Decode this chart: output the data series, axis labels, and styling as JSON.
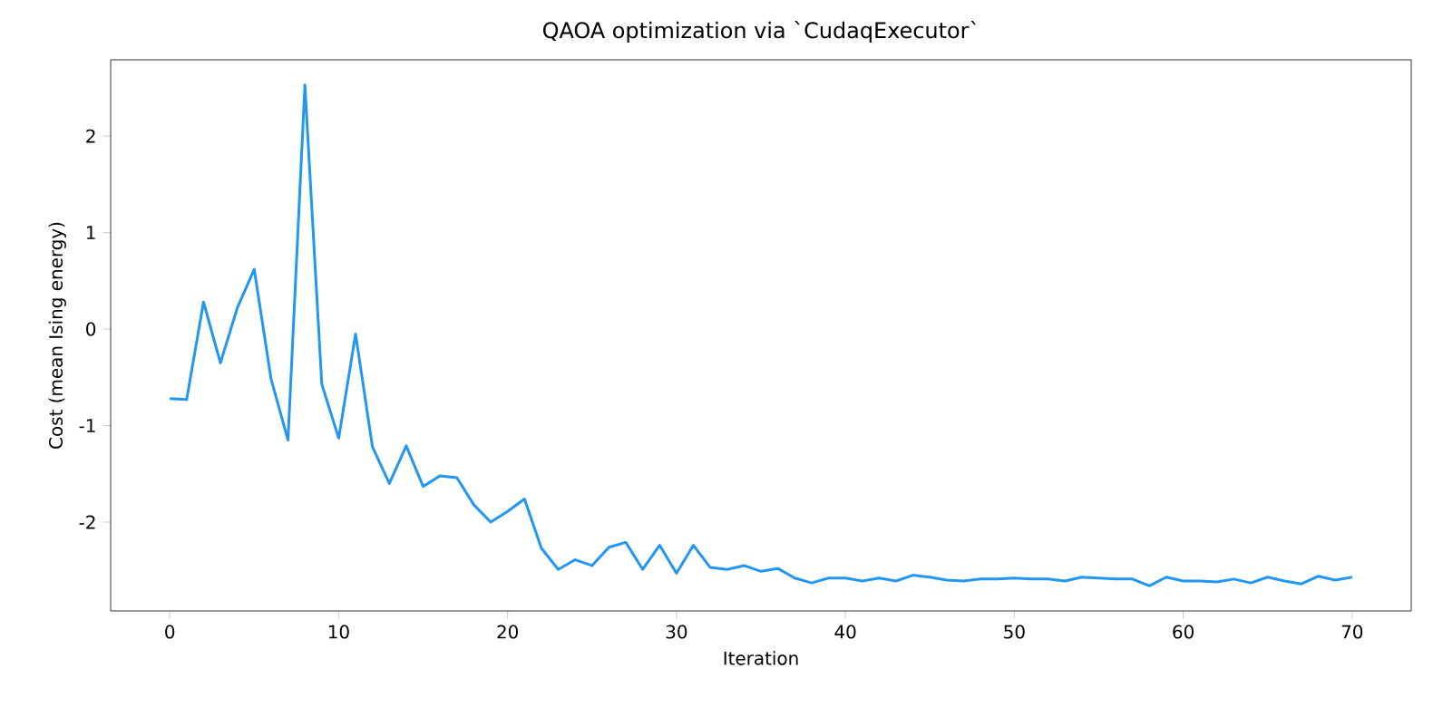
{
  "chart_data": {
    "type": "line",
    "title": "QAOA optimization via `CudaqExecutor`",
    "xlabel": "Iteration",
    "ylabel": "Cost (mean Ising energy)",
    "x": [
      0,
      1,
      2,
      3,
      4,
      5,
      6,
      7,
      8,
      9,
      10,
      11,
      12,
      13,
      14,
      15,
      16,
      17,
      18,
      19,
      20,
      21,
      22,
      23,
      24,
      25,
      26,
      27,
      28,
      29,
      30,
      31,
      32,
      33,
      34,
      35,
      36,
      37,
      38,
      39,
      40,
      41,
      42,
      43,
      44,
      45,
      46,
      47,
      48,
      49,
      50,
      51,
      52,
      53,
      54,
      55,
      56,
      57,
      58,
      59,
      60,
      61,
      62,
      63,
      64,
      65,
      66,
      67,
      68,
      69,
      70
    ],
    "series": [
      {
        "color": "#2196f3",
        "values": [
          -0.72,
          -0.73,
          0.28,
          -0.35,
          0.22,
          0.62,
          -0.52,
          -1.15,
          2.53,
          -0.57,
          -1.13,
          -0.05,
          -1.22,
          -1.6,
          -1.21,
          -1.63,
          -1.52,
          -1.54,
          -1.82,
          -2.0,
          -1.89,
          -1.76,
          -2.27,
          -2.49,
          -2.39,
          -2.45,
          -2.26,
          -2.21,
          -2.49,
          -2.24,
          -2.53,
          -2.24,
          -2.47,
          -2.49,
          -2.45,
          -2.51,
          -2.48,
          -2.58,
          -2.63,
          -2.58,
          -2.58,
          -2.61,
          -2.58,
          -2.61,
          -2.55,
          -2.57,
          -2.6,
          -2.61,
          -2.59,
          -2.59,
          -2.58,
          -2.59,
          -2.59,
          -2.61,
          -2.57,
          -2.58,
          -2.59,
          -2.59,
          -2.66,
          -2.57,
          -2.61,
          -2.61,
          -2.62,
          -2.59,
          -2.63,
          -2.57,
          -2.61,
          -2.64,
          -2.56,
          -2.6,
          -2.57
        ]
      }
    ],
    "xlim": [
      -3.5,
      73.5
    ],
    "ylim": [
      -2.92,
      2.79
    ],
    "xticks": [
      0,
      10,
      20,
      30,
      40,
      50,
      60,
      70
    ],
    "yticks": [
      -2,
      -1,
      0,
      1,
      2
    ],
    "marker": "none",
    "line_style": "solid"
  }
}
